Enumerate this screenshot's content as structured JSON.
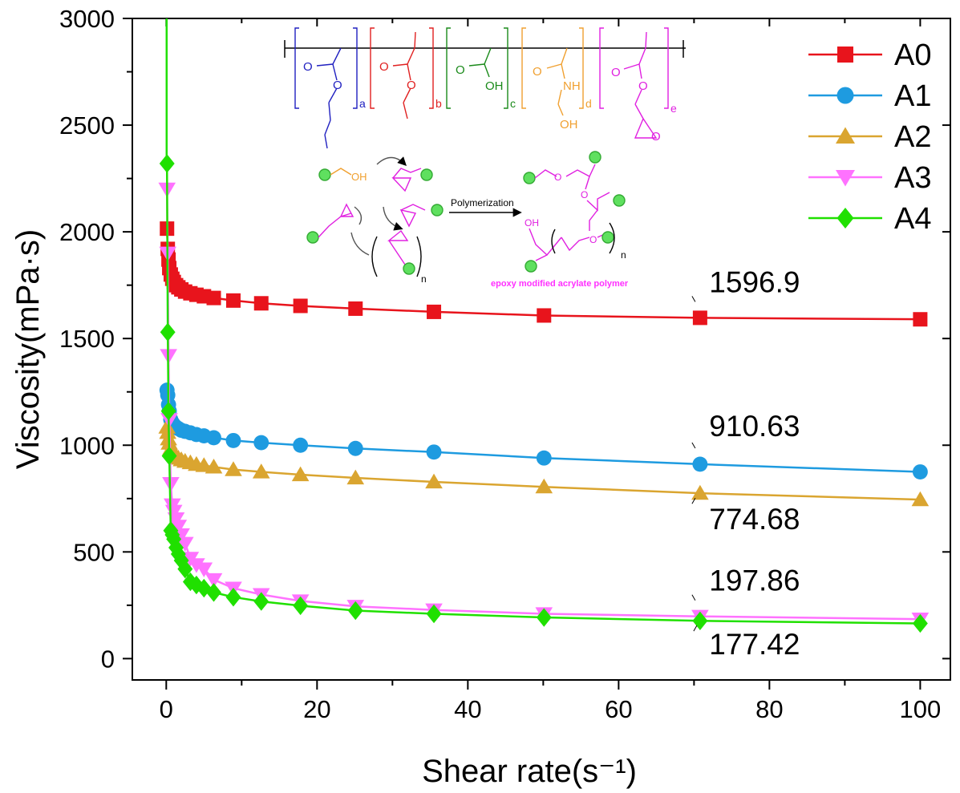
{
  "chart_data": {
    "type": "line",
    "xlabel": "Shear rate(s⁻¹)",
    "ylabel": "Viscosity(mPa·s)",
    "xlim": [
      -4.5,
      104
    ],
    "ylim": [
      -100,
      3000
    ],
    "xticks": [
      0,
      20,
      40,
      60,
      80,
      100
    ],
    "yticks": [
      0,
      500,
      1000,
      1500,
      2000,
      2500,
      3000
    ],
    "legend_position": "top-right",
    "series": [
      {
        "name": "A0",
        "color": "#e8141c",
        "marker": "square",
        "x": [
          0.1,
          0.2,
          0.3,
          0.4,
          0.6,
          0.8,
          1.0,
          1.3,
          1.6,
          2.0,
          2.5,
          3.2,
          4.0,
          5.0,
          6.3,
          8.9,
          12.6,
          17.8,
          25.1,
          35.5,
          50.1,
          70.8,
          100
        ],
        "y": [
          2015,
          1920,
          1870,
          1830,
          1800,
          1780,
          1765,
          1750,
          1740,
          1730,
          1720,
          1712,
          1705,
          1698,
          1690,
          1678,
          1665,
          1653,
          1640,
          1625,
          1608,
          1597,
          1590
        ]
      },
      {
        "name": "A1",
        "color": "#1e9be0",
        "marker": "circle",
        "x": [
          0.1,
          0.2,
          0.3,
          0.4,
          0.6,
          0.8,
          1.0,
          1.3,
          1.6,
          2.0,
          2.5,
          3.2,
          4.0,
          5.0,
          6.3,
          8.9,
          12.6,
          17.8,
          25.1,
          35.5,
          50.1,
          70.8,
          100
        ],
        "y": [
          1258,
          1235,
          1190,
          1160,
          1120,
          1105,
          1095,
          1085,
          1078,
          1070,
          1065,
          1058,
          1050,
          1044,
          1035,
          1022,
          1012,
          1000,
          985,
          968,
          940,
          911,
          875
        ]
      },
      {
        "name": "A2",
        "color": "#daa530",
        "marker": "triangle-up",
        "x": [
          0.1,
          0.2,
          0.3,
          0.4,
          0.6,
          0.8,
          1.0,
          1.3,
          1.6,
          2.0,
          2.5,
          3.2,
          4.0,
          5.0,
          6.3,
          8.9,
          12.6,
          17.8,
          25.1,
          35.5,
          50.1,
          70.8,
          100
        ],
        "y": [
          1085,
          1060,
          1030,
          1010,
          985,
          970,
          960,
          950,
          940,
          932,
          925,
          918,
          910,
          905,
          898,
          886,
          875,
          862,
          847,
          828,
          805,
          775,
          745
        ]
      },
      {
        "name": "A3",
        "color": "#ff72ff",
        "marker": "triangle-down",
        "x": [
          0.1,
          0.2,
          0.3,
          0.4,
          0.6,
          0.8,
          1.0,
          1.3,
          1.6,
          2.0,
          2.5,
          3.2,
          4.0,
          5.0,
          6.3,
          8.9,
          12.6,
          17.8,
          25.1,
          35.5,
          50.1,
          70.8,
          100
        ],
        "y": [
          2200,
          1900,
          1420,
          1120,
          820,
          720,
          690,
          655,
          620,
          580,
          540,
          470,
          440,
          420,
          370,
          330,
          300,
          270,
          245,
          228,
          210,
          198,
          185
        ]
      },
      {
        "name": "A4",
        "color": "#20e000",
        "marker": "diamond",
        "x": [
          0.1,
          0.2,
          0.3,
          0.4,
          0.6,
          0.8,
          1.0,
          1.3,
          1.6,
          2.0,
          2.5,
          3.2,
          4.0,
          5.0,
          6.3,
          8.9,
          12.6,
          17.8,
          25.1,
          35.5,
          50.1,
          70.8,
          100
        ],
        "y": [
          2320,
          1530,
          1160,
          950,
          600,
          580,
          560,
          520,
          490,
          460,
          420,
          360,
          345,
          330,
          310,
          288,
          268,
          248,
          225,
          210,
          193,
          177,
          165
        ]
      }
    ],
    "annotations": [
      {
        "text": "1596.9",
        "x": 70.8,
        "y": 1596.9
      },
      {
        "text": "910.63",
        "x": 70.8,
        "y": 910.63
      },
      {
        "text": "774.68",
        "x": 70.8,
        "y": 774.68
      },
      {
        "text": "197.86",
        "x": 70.8,
        "y": 197.86
      },
      {
        "text": "177.42",
        "x": 70.8,
        "y": 177.42
      }
    ]
  },
  "inset": {
    "subscripts": [
      "a",
      "b",
      "c",
      "d",
      "e"
    ],
    "label_O": "O",
    "label_OH": "OH",
    "label_NH": "NH",
    "label_n": "n",
    "arrow_label": "Polymerization",
    "product_label": "epoxy modified acrylate polymer",
    "colors": {
      "a": "#2020c0",
      "b": "#e02020",
      "c": "#1a8a1a",
      "d": "#f0a030",
      "e": "#e020e0",
      "bead": "#5fe05f"
    }
  }
}
